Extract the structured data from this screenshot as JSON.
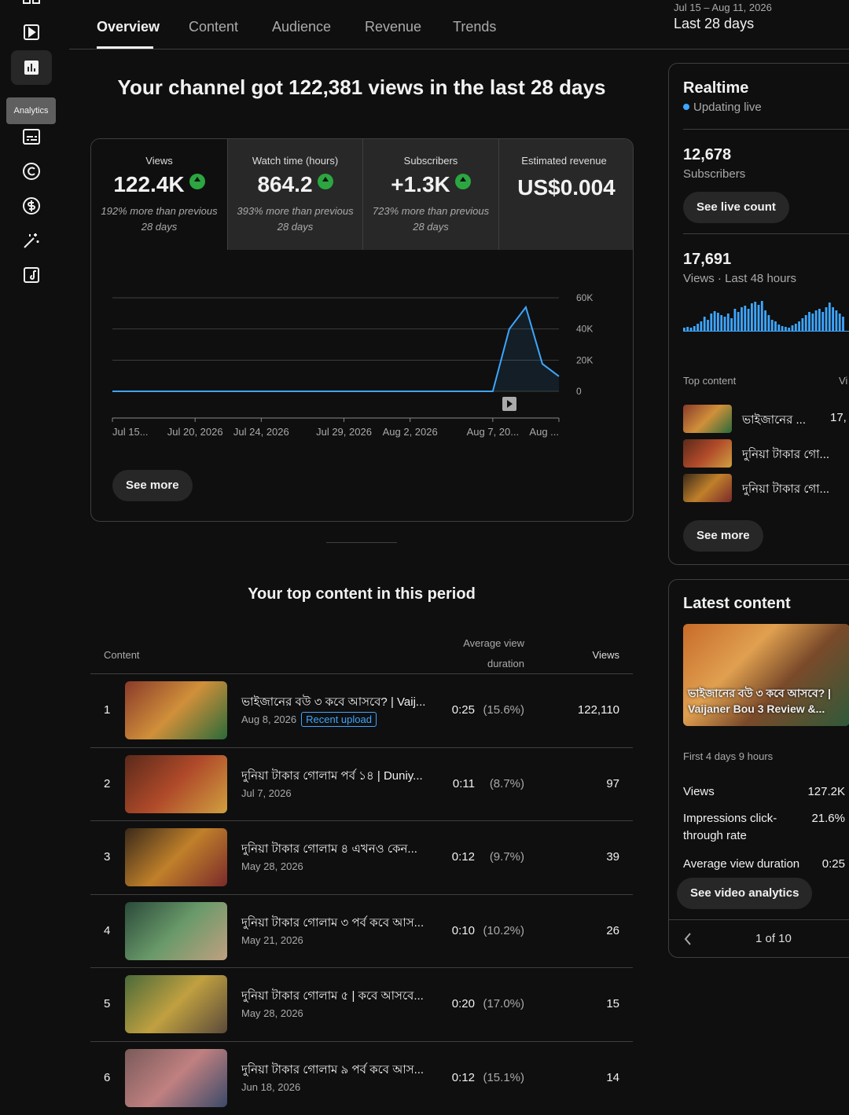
{
  "nav": {
    "tooltip": "Analytics"
  },
  "tabs": [
    "Overview",
    "Content",
    "Audience",
    "Revenue",
    "Trends"
  ],
  "date_range": {
    "dates": "Jul 15 – Aug 11, 2026",
    "period": "Last 28 days"
  },
  "headline": "Your channel got 122,381 views in the last 28 days",
  "metrics": [
    {
      "label": "Views",
      "value": "122.4K",
      "note": "192% more than previous 28 days"
    },
    {
      "label": "Watch time (hours)",
      "value": "864.2",
      "note": "393% more than previous 28 days"
    },
    {
      "label": "Subscribers",
      "value": "+1.3K",
      "note": "723% more than previous 28 days"
    },
    {
      "label": "Estimated revenue",
      "value": "US$0.004"
    }
  ],
  "chart_data": {
    "type": "line",
    "categories": [
      "Jul 15...",
      null,
      null,
      null,
      null,
      "Jul 20, 2026",
      null,
      null,
      null,
      "Jul 24, 2026",
      null,
      null,
      null,
      null,
      "Jul 29, 2026",
      null,
      null,
      null,
      "Aug 2, 2026",
      null,
      null,
      null,
      null,
      "Aug 7, 20...",
      null,
      null,
      null,
      "Aug ..."
    ],
    "values": [
      0,
      0,
      0,
      0,
      0,
      0,
      0,
      0,
      0,
      0,
      0,
      0,
      0,
      0,
      0,
      0,
      0,
      0,
      0,
      0,
      0,
      0,
      0,
      0,
      40000,
      54000,
      17600,
      9600
    ],
    "color": "#3ea6ff",
    "ylim": [
      0,
      60000
    ],
    "yticks": [
      0,
      {
        "value": 20000,
        "label": "20K"
      },
      {
        "value": 40000,
        "label": "40K"
      },
      {
        "value": 60000,
        "label": "60K"
      }
    ],
    "grid": true
  },
  "see_more": "See more",
  "top_content": {
    "title": "Your top content in this period",
    "columns": [
      "Content",
      "Average view duration",
      "Views"
    ],
    "rows": [
      {
        "rank": "1",
        "title": "ভাইজানের বউ ৩ কবে আসবে? | Vaij...",
        "date": "Aug 8, 2026",
        "badge": "Recent upload",
        "duration": "0:25",
        "percent": "(15.6%)",
        "views": "122,110"
      },
      {
        "rank": "2",
        "title": "দুনিয়া টাকার গোলাম পর্ব ১৪ | Duniy...",
        "date": "Jul 7, 2026",
        "duration": "0:11",
        "percent": "(8.7%)",
        "views": "97"
      },
      {
        "rank": "3",
        "title": "দুনিয়া টাকার গোলাম ৪ এখনও কেন...",
        "date": "May 28, 2026",
        "duration": "0:12",
        "percent": "(9.7%)",
        "views": "39"
      },
      {
        "rank": "4",
        "title": "দুনিয়া টাকার গোলাম ৩ পর্ব কবে আস...",
        "date": "May 21, 2026",
        "duration": "0:10",
        "percent": "(10.2%)",
        "views": "26"
      },
      {
        "rank": "5",
        "title": "দুনিয়া টাকার গোলাম ৫ | কবে আসবে...",
        "date": "May 28, 2026",
        "duration": "0:20",
        "percent": "(17.0%)",
        "views": "15"
      },
      {
        "rank": "6",
        "title": "দুনিয়া টাকার গোলাম ৯ পর্ব কবে আস...",
        "date": "Jun 18, 2026",
        "duration": "0:12",
        "percent": "(15.1%)",
        "views": "14"
      }
    ]
  },
  "realtime": {
    "title": "Realtime",
    "status": "Updating live",
    "subscribers": "12,678",
    "subscribers_label": "Subscribers",
    "button": "See live count",
    "views": "17,691",
    "views_label": "Views · Last 48 hours",
    "bars": [
      4,
      5,
      4,
      6,
      9,
      12,
      18,
      14,
      22,
      25,
      23,
      20,
      18,
      22,
      16,
      28,
      24,
      30,
      32,
      28,
      35,
      37,
      33,
      38,
      26,
      20,
      14,
      12,
      8,
      6,
      5,
      4,
      7,
      9,
      12,
      16,
      20,
      24,
      22,
      26,
      28,
      24,
      30,
      36,
      30,
      26,
      22,
      18
    ],
    "top_label": "Top content",
    "top_column": "Vi",
    "items": [
      {
        "title": "ভাইজানের ...",
        "views": "17,"
      },
      {
        "title": "দুনিয়া টাকার গো..."
      },
      {
        "title": "দুনিয়া টাকার গো..."
      }
    ],
    "see_more": "See more"
  },
  "latest": {
    "title": "Latest content",
    "video_title": "ভাইজানের বউ ৩ কবে আসবে? | Vaijaner Bou 3 Review &...",
    "period": "First 4 days 9 hours",
    "stats": [
      {
        "label": "Views",
        "value": "127.2K"
      },
      {
        "label": "Impressions click-through rate",
        "value": "21.6%"
      },
      {
        "label": "Average view duration",
        "value": "0:25"
      }
    ],
    "button": "See video analytics",
    "pager": "1 of 10"
  }
}
